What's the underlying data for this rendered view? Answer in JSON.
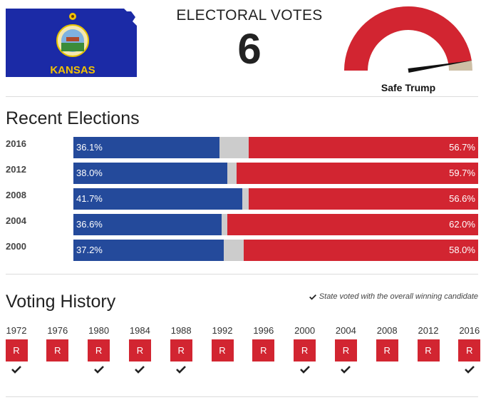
{
  "header": {
    "flag_text": "KANSAS",
    "ev_title": "ELECTORAL VOTES",
    "ev_count": "6",
    "rating_label": "Safe Trump",
    "gauge_value_pct": 95
  },
  "recent": {
    "title": "Recent Elections",
    "elections": [
      {
        "year": "2016",
        "dem_label": "36.1%",
        "rep_label": "56.7%",
        "dem": 36.1,
        "rep": 56.7
      },
      {
        "year": "2012",
        "dem_label": "38.0%",
        "rep_label": "59.7%",
        "dem": 38.0,
        "rep": 59.7
      },
      {
        "year": "2008",
        "dem_label": "41.7%",
        "rep_label": "56.6%",
        "dem": 41.7,
        "rep": 56.6
      },
      {
        "year": "2004",
        "dem_label": "36.6%",
        "rep_label": "62.0%",
        "dem": 36.6,
        "rep": 62.0
      },
      {
        "year": "2000",
        "dem_label": "37.2%",
        "rep_label": "58.0%",
        "dem": 37.2,
        "rep": 58.0
      }
    ]
  },
  "history": {
    "title": "Voting History",
    "note": "State voted with the overall winning candidate",
    "years": [
      {
        "year": "1972",
        "party": "R",
        "with_winner": true
      },
      {
        "year": "1976",
        "party": "R",
        "with_winner": false
      },
      {
        "year": "1980",
        "party": "R",
        "with_winner": true
      },
      {
        "year": "1984",
        "party": "R",
        "with_winner": true
      },
      {
        "year": "1988",
        "party": "R",
        "with_winner": true
      },
      {
        "year": "1992",
        "party": "R",
        "with_winner": false
      },
      {
        "year": "1996",
        "party": "R",
        "with_winner": false
      },
      {
        "year": "2000",
        "party": "R",
        "with_winner": true
      },
      {
        "year": "2004",
        "party": "R",
        "with_winner": true
      },
      {
        "year": "2008",
        "party": "R",
        "with_winner": false
      },
      {
        "year": "2012",
        "party": "R",
        "with_winner": false
      },
      {
        "year": "2016",
        "party": "R",
        "with_winner": true
      }
    ]
  },
  "colors": {
    "democrat": "#244a9b",
    "republican": "#d22531",
    "other": "#cccccc",
    "gauge_remainder": "#cdbfa6"
  }
}
